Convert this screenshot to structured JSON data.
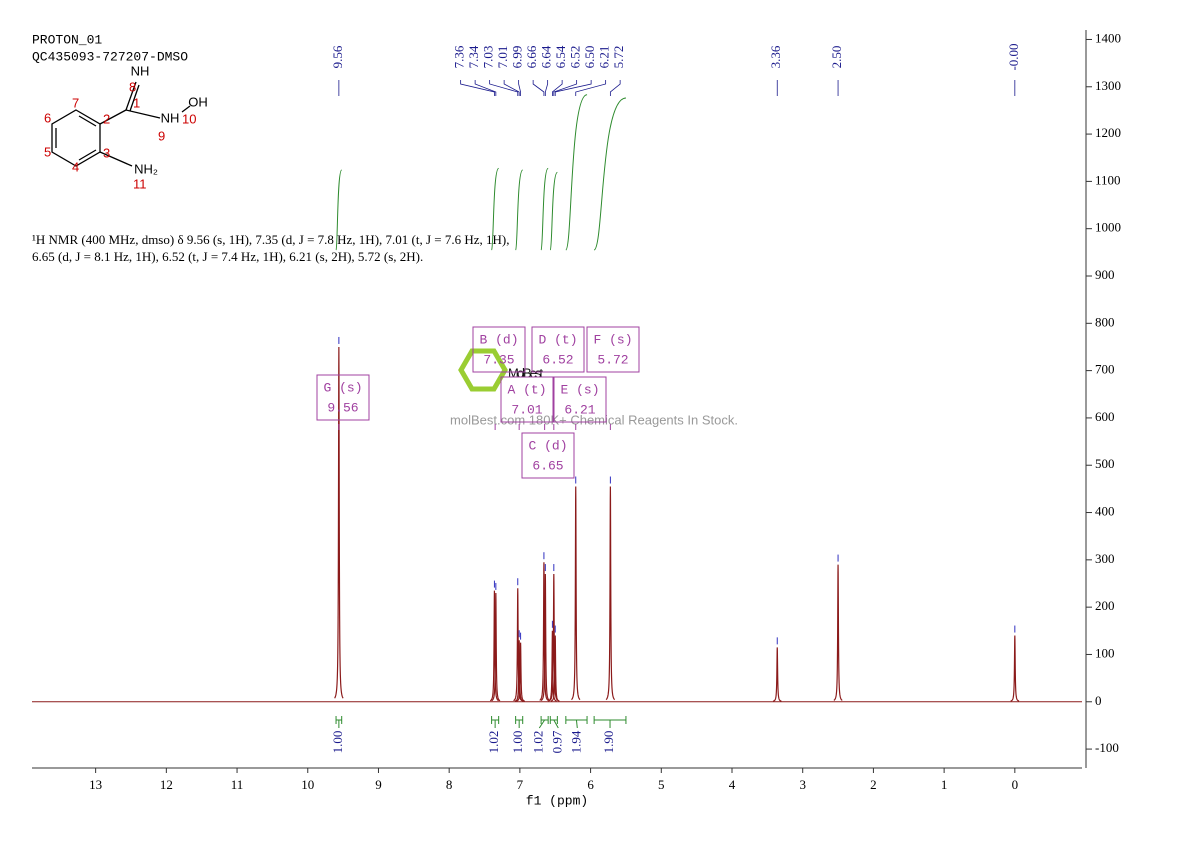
{
  "chart_data": {
    "type": "line",
    "title": "PROTON_01",
    "subtitle": "QC435093-727207-DMSO",
    "x_label": "f1 (ppm)",
    "xlim": [
      13.9,
      -0.95
    ],
    "xticks": [
      13,
      12,
      11,
      10,
      9,
      8,
      7,
      6,
      5,
      4,
      3,
      2,
      1,
      0
    ],
    "ylim": [
      -140,
      1420
    ],
    "yticks": [
      -100,
      0,
      100,
      200,
      300,
      400,
      500,
      600,
      700,
      800,
      900,
      1000,
      1100,
      1200,
      1300,
      1400
    ],
    "color": "#8b1a1a",
    "x": [
      9.56,
      7.36,
      7.34,
      7.03,
      7.01,
      6.99,
      6.66,
      6.64,
      6.54,
      6.52,
      6.5,
      6.21,
      5.72,
      3.36,
      2.5,
      0.0
    ],
    "x_labels": [
      "9.56",
      "7.36",
      "7.34",
      "7.03",
      "7.01",
      "6.99",
      "6.66",
      "6.64",
      "6.54",
      "6.52",
      "6.50",
      "6.21",
      "5.72",
      "3.36",
      "2.50",
      "-0.00"
    ],
    "values": [
      750,
      235,
      230,
      240,
      130,
      125,
      295,
      270,
      150,
      270,
      140,
      455,
      455,
      115,
      290,
      140
    ],
    "peak_label_color": "#1a1a8c",
    "integrals": {
      "color": "#2e8b2e",
      "ranges": [
        [
          9.6,
          9.52
        ],
        [
          7.4,
          7.3
        ],
        [
          7.06,
          6.96
        ],
        [
          6.7,
          6.6
        ],
        [
          6.57,
          6.47
        ],
        [
          6.35,
          6.05
        ],
        [
          5.95,
          5.5
        ]
      ],
      "values": [
        1,
        1.02,
        1,
        1.02,
        0.97,
        1.94,
        1.9
      ],
      "value_labels": [
        "1.00",
        "1.02",
        "1.00",
        "1.02",
        "0.97",
        "1.94",
        "1.90"
      ]
    },
    "multiplets": {
      "color": "#a040a0",
      "labels": [
        "G (s)",
        "B (d)",
        "D (t)",
        "F (s)",
        "A (t)",
        "E (s)",
        "C (d)"
      ],
      "shifts": [
        9.56,
        7.35,
        6.52,
        5.72,
        7.01,
        6.21,
        6.65
      ]
    },
    "description": [
      "¹H NMR (400 MHz, dmso) δ 9.56 (s, 1H), 7.35 (d, J = 7.8 Hz, 1H), 7.01 (t, J = 7.6 Hz, 1H),",
      "6.65 (d, J = 8.1 Hz, 1H), 6.52 (t, J = 7.4 Hz, 1H), 6.21 (s, 2H), 5.72 (s, 2H)."
    ],
    "structure": {
      "atoms": [
        "NH",
        "NH",
        "OH",
        "NH₂"
      ],
      "numbers": [
        "1",
        "2",
        "3",
        "4",
        "5",
        "6",
        "7",
        "8",
        "9",
        "10",
        "11"
      ]
    },
    "watermark": "MolBest",
    "watermark_note": "molBest.com 180K+ Chemical Reagents In Stock."
  }
}
